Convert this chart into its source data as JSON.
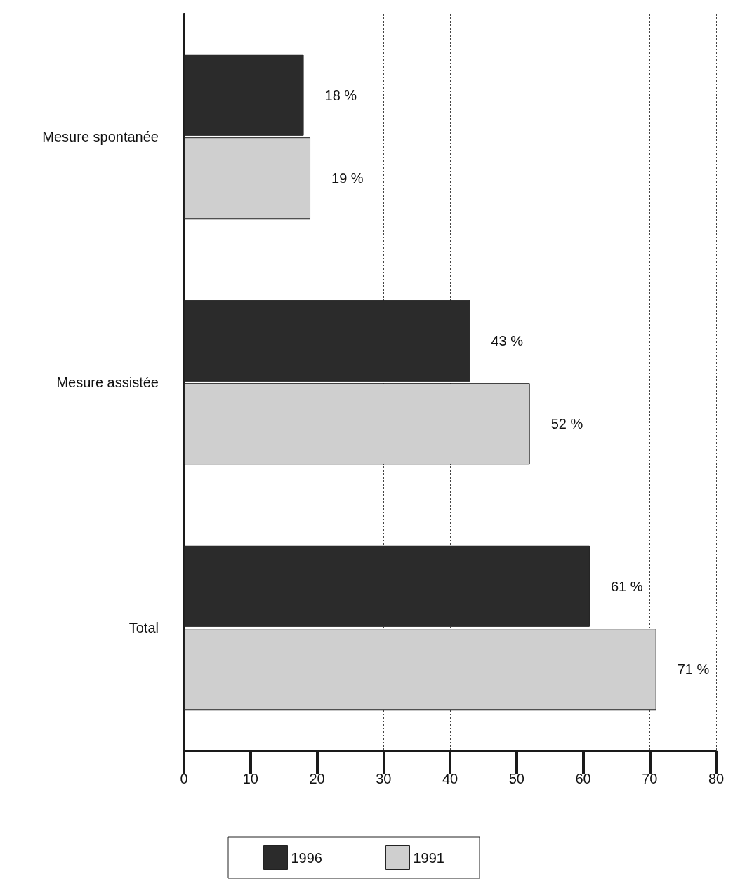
{
  "chart_data": {
    "type": "bar",
    "orientation": "horizontal",
    "categories": [
      "Mesure spontanée",
      "Mesure assistée",
      "Total"
    ],
    "series": [
      {
        "name": "1996",
        "color": "#2b2b2b",
        "values": [
          18,
          43,
          61
        ],
        "value_labels": [
          "18 %",
          "43 %",
          "61 %"
        ]
      },
      {
        "name": "1991",
        "color": "#cfcfcf",
        "values": [
          19,
          52,
          71
        ],
        "value_labels": [
          "19 %",
          "52 %",
          "71 %"
        ]
      }
    ],
    "xlim": [
      0,
      80
    ],
    "xticks": [
      0,
      10,
      20,
      30,
      40,
      50,
      60,
      70,
      80
    ],
    "grid": "x",
    "legend": "bottom"
  }
}
